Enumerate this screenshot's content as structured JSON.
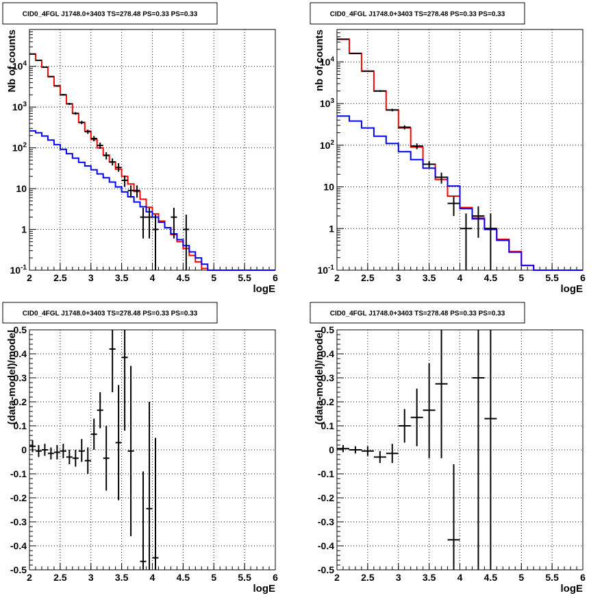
{
  "charts": [
    {
      "title": "CID0_4FGL J1748.0+3403 TS=278.48 PS=0.33 PS=0.33",
      "xlabel": "logE",
      "ylabel": "Nb of counts",
      "chart_data": {
        "type": "line",
        "log_y": true,
        "xlim": [
          2,
          6
        ],
        "ylim": [
          0.1,
          80000
        ],
        "x_ticks": [
          "2",
          "2.5",
          "3",
          "3.5",
          "4",
          "4.5",
          "5",
          "5.5",
          "6"
        ],
        "y_ticks": [
          "10^-1",
          "1",
          "10",
          "10^2",
          "10^3",
          "10^4"
        ],
        "grid": true,
        "bin_width": 0.1,
        "series": [
          {
            "color": "#ff0000",
            "style": "step",
            "bin_edges": [
              2.0,
              2.1,
              2.2,
              2.3,
              2.4,
              2.5,
              2.6,
              2.7,
              2.8,
              2.9,
              3.0,
              3.1,
              3.2,
              3.3,
              3.4,
              3.5,
              3.6,
              3.7,
              3.8,
              3.9,
              4.0,
              4.1,
              4.2,
              4.3,
              4.4,
              4.5,
              4.6,
              4.7,
              4.8,
              4.9,
              5.0,
              5.1,
              5.2,
              5.3,
              5.4,
              5.5,
              5.6,
              5.7,
              5.8,
              5.9,
              6.0
            ],
            "values": [
              20000,
              14000,
              9500,
              5600,
              3300,
              2000,
              1200,
              700,
              420,
              255,
              160,
              100,
              66,
              45,
              30,
              20,
              13,
              8.5,
              5.5,
              3.5,
              2.4,
              1.6,
              1.1,
              0.75,
              0.5,
              0.34,
              0.23,
              0.16,
              0.11,
              0.1,
              0.1,
              0.1,
              0.1,
              0.1,
              0.1,
              0.1,
              0.1,
              0.1,
              0.1,
              0.1
            ]
          },
          {
            "color": "#0000ff",
            "style": "step",
            "bin_edges": [
              2.0,
              2.1,
              2.2,
              2.3,
              2.4,
              2.5,
              2.6,
              2.7,
              2.8,
              2.9,
              3.0,
              3.1,
              3.2,
              3.3,
              3.4,
              3.5,
              3.6,
              3.7,
              3.8,
              3.9,
              4.0,
              4.1,
              4.2,
              4.3,
              4.4,
              4.5,
              4.6,
              4.7,
              4.8,
              4.9,
              5.0,
              5.1,
              5.2,
              5.3,
              5.4,
              5.5,
              5.6,
              5.7,
              5.8,
              5.9,
              6.0
            ],
            "values": [
              260,
              235,
              195,
              155,
              120,
              92,
              72,
              56,
              44,
              36,
              29,
              23,
              18.5,
              14.5,
              11,
              8.3,
              6.3,
              4.7,
              3.6,
              2.7,
              2.0,
              1.5,
              1.1,
              0.78,
              0.56,
              0.4,
              0.28,
              0.2,
              0.14,
              0.1,
              0.1,
              0.1,
              0.1,
              0.1,
              0.1,
              0.1,
              0.1,
              0.1,
              0.1,
              0.1
            ]
          },
          {
            "color": "#000000",
            "style": "errorbar",
            "points": [
              {
                "x": 2.05,
                "y": 20000,
                "lo": 19800,
                "hi": 20200
              },
              {
                "x": 2.15,
                "y": 14000,
                "lo": 13800,
                "hi": 14200
              },
              {
                "x": 2.25,
                "y": 9500,
                "lo": 9300,
                "hi": 9700
              },
              {
                "x": 2.35,
                "y": 5600,
                "lo": 5450,
                "hi": 5750
              },
              {
                "x": 2.45,
                "y": 3300,
                "lo": 3190,
                "hi": 3410
              },
              {
                "x": 2.55,
                "y": 2000,
                "lo": 1910,
                "hi": 2090
              },
              {
                "x": 2.65,
                "y": 1200,
                "lo": 1130,
                "hi": 1270
              },
              {
                "x": 2.75,
                "y": 700,
                "lo": 650,
                "hi": 750
              },
              {
                "x": 2.85,
                "y": 420,
                "lo": 380,
                "hi": 460
              },
              {
                "x": 2.95,
                "y": 250,
                "lo": 220,
                "hi": 280
              },
              {
                "x": 3.05,
                "y": 170,
                "lo": 145,
                "hi": 195
              },
              {
                "x": 3.15,
                "y": 115,
                "lo": 95,
                "hi": 135
              },
              {
                "x": 3.25,
                "y": 65,
                "lo": 52,
                "hi": 78
              },
              {
                "x": 3.35,
                "y": 45,
                "lo": 37,
                "hi": 55
              },
              {
                "x": 3.45,
                "y": 33,
                "lo": 26,
                "hi": 42
              },
              {
                "x": 3.55,
                "y": 16,
                "lo": 11,
                "hi": 21
              },
              {
                "x": 3.65,
                "y": 9,
                "lo": 6,
                "hi": 12
              },
              {
                "x": 3.75,
                "y": 9,
                "lo": 6,
                "hi": 12
              },
              {
                "x": 3.85,
                "y": 2,
                "lo": 0.6,
                "hi": 3.4
              },
              {
                "x": 3.95,
                "y": 2,
                "lo": 0.6,
                "hi": 3.4
              },
              {
                "x": 4.05,
                "y": 1,
                "lo": 0.1,
                "hi": 2.3
              },
              {
                "x": 4.35,
                "y": 2,
                "lo": 0.6,
                "hi": 3.4
              },
              {
                "x": 4.55,
                "y": 1,
                "lo": 0.1,
                "hi": 2.3
              }
            ]
          }
        ]
      }
    },
    {
      "title": "CID0_4FGL J1748.0+3403 TS=278.48 PS=0.33 PS=0.33",
      "xlabel": "logE",
      "ylabel": "nb of counts",
      "chart_data": {
        "type": "line",
        "log_y": true,
        "xlim": [
          2,
          6
        ],
        "ylim": [
          0.1,
          60000
        ],
        "x_ticks": [
          "2",
          "2.5",
          "3",
          "3.5",
          "4",
          "4.5",
          "5",
          "5.5",
          "6"
        ],
        "y_ticks": [
          "10^-1",
          "1",
          "10",
          "10^2",
          "10^3",
          "10^4"
        ],
        "grid": true,
        "bin_width": 0.2,
        "series": [
          {
            "color": "#ff0000",
            "style": "step",
            "bin_edges": [
              2.0,
              2.2,
              2.4,
              2.6,
              2.8,
              3.0,
              3.2,
              3.4,
              3.6,
              3.8,
              4.0,
              4.2,
              4.4,
              4.6,
              4.8,
              5.0,
              5.2,
              5.4,
              5.6,
              5.8,
              6.0
            ],
            "values": [
              35000,
              16000,
              6000,
              2000,
              700,
              260,
              90,
              35,
              15,
              6,
              3.2,
              1.8,
              1.0,
              0.55,
              0.28,
              0.13,
              0.1,
              0.1,
              0.1,
              0.1
            ]
          },
          {
            "color": "#0000ff",
            "style": "step",
            "bin_edges": [
              2.0,
              2.2,
              2.4,
              2.6,
              2.8,
              3.0,
              3.2,
              3.4,
              3.6,
              3.8,
              4.0,
              4.2,
              4.4,
              4.6,
              4.8,
              5.0,
              5.2,
              5.4,
              5.6,
              5.8,
              6.0
            ],
            "values": [
              500,
              380,
              260,
              165,
              110,
              70,
              45,
              28,
              17,
              10.5,
              3.0,
              1.7,
              0.95,
              0.52,
              0.27,
              0.13,
              0.1,
              0.1,
              0.1,
              0.1
            ]
          },
          {
            "color": "#000000",
            "style": "errorbar",
            "points": [
              {
                "x": 2.1,
                "y": 35000,
                "lo": 34600,
                "hi": 35400
              },
              {
                "x": 2.3,
                "y": 16000,
                "lo": 15700,
                "hi": 16300
              },
              {
                "x": 2.5,
                "y": 6000,
                "lo": 5800,
                "hi": 6200
              },
              {
                "x": 2.7,
                "y": 2000,
                "lo": 1900,
                "hi": 2100
              },
              {
                "x": 2.9,
                "y": 700,
                "lo": 650,
                "hi": 750
              },
              {
                "x": 3.1,
                "y": 270,
                "lo": 240,
                "hi": 300
              },
              {
                "x": 3.3,
                "y": 95,
                "lo": 80,
                "hi": 110
              },
              {
                "x": 3.5,
                "y": 35,
                "lo": 28,
                "hi": 42
              },
              {
                "x": 3.7,
                "y": 17,
                "lo": 12,
                "hi": 22
              },
              {
                "x": 3.9,
                "y": 4,
                "lo": 2,
                "hi": 6
              },
              {
                "x": 4.1,
                "y": 1,
                "lo": 0.1,
                "hi": 2.3
              },
              {
                "x": 4.3,
                "y": 2,
                "lo": 0.6,
                "hi": 3.4
              },
              {
                "x": 4.5,
                "y": 1,
                "lo": 0.1,
                "hi": 2.3
              }
            ]
          }
        ]
      }
    },
    {
      "title": "CID0_4FGL J1748.0+3403 TS=278.48 PS=0.33 PS=0.33",
      "xlabel": "logE",
      "ylabel": "(data-model)/model",
      "chart_data": {
        "type": "scatter",
        "log_y": false,
        "xlim": [
          2,
          6
        ],
        "ylim": [
          -0.5,
          0.5
        ],
        "x_ticks": [
          "2",
          "2.5",
          "3",
          "3.5",
          "4",
          "4.5",
          "5",
          "5.5",
          "6"
        ],
        "y_ticks": [
          "-0.5",
          "-0.4",
          "-0.3",
          "-0.2",
          "-0.1",
          "0",
          "0.1",
          "0.2",
          "0.3",
          "0.4",
          "0.5"
        ],
        "grid": true,
        "bin_width": 0.1,
        "series": [
          {
            "color": "#000000",
            "style": "errorbar",
            "points": [
              {
                "x": 2.05,
                "y": 0.015,
                "lo": -0.01,
                "hi": 0.04
              },
              {
                "x": 2.15,
                "y": -0.005,
                "lo": -0.03,
                "hi": 0.02
              },
              {
                "x": 2.25,
                "y": 0.0,
                "lo": -0.025,
                "hi": 0.025
              },
              {
                "x": 2.35,
                "y": -0.015,
                "lo": -0.04,
                "hi": 0.01
              },
              {
                "x": 2.45,
                "y": -0.01,
                "lo": -0.04,
                "hi": 0.02
              },
              {
                "x": 2.55,
                "y": -0.005,
                "lo": -0.035,
                "hi": 0.025
              },
              {
                "x": 2.65,
                "y": -0.03,
                "lo": -0.06,
                "hi": 0.0
              },
              {
                "x": 2.75,
                "y": -0.035,
                "lo": -0.07,
                "hi": 0.0
              },
              {
                "x": 2.85,
                "y": -0.005,
                "lo": -0.05,
                "hi": 0.045
              },
              {
                "x": 2.95,
                "y": -0.045,
                "lo": -0.1,
                "hi": 0.01
              },
              {
                "x": 3.05,
                "y": 0.065,
                "lo": 0.0,
                "hi": 0.13
              },
              {
                "x": 3.15,
                "y": 0.165,
                "lo": 0.09,
                "hi": 0.24
              },
              {
                "x": 3.25,
                "y": -0.035,
                "lo": -0.17,
                "hi": 0.1
              },
              {
                "x": 3.35,
                "y": 0.42,
                "lo": 0.24,
                "hi": 0.5
              },
              {
                "x": 3.45,
                "y": 0.03,
                "lo": -0.21,
                "hi": 0.27
              },
              {
                "x": 3.55,
                "y": 0.385,
                "lo": 0.08,
                "hi": 0.5
              },
              {
                "x": 3.65,
                "y": -0.005,
                "lo": -0.36,
                "hi": 0.35
              },
              {
                "x": 3.85,
                "y": -0.465,
                "lo": -0.5,
                "hi": -0.09
              },
              {
                "x": 3.95,
                "y": -0.245,
                "lo": -0.5,
                "hi": 0.2
              },
              {
                "x": 4.05,
                "y": -0.45,
                "lo": -0.5,
                "hi": 0.05
              }
            ]
          }
        ]
      }
    },
    {
      "title": "CID0_4FGL J1748.0+3403 TS=278.48 PS=0.33 PS=0.33",
      "xlabel": "logE",
      "ylabel": "(data-model)/model",
      "chart_data": {
        "type": "scatter",
        "log_y": false,
        "xlim": [
          2,
          6
        ],
        "ylim": [
          -0.5,
          0.5
        ],
        "x_ticks": [
          "2",
          "2.5",
          "3",
          "3.5",
          "4",
          "4.5",
          "5",
          "5.5",
          "6"
        ],
        "y_ticks": [
          "-0.5",
          "-0.4",
          "-0.3",
          "-0.2",
          "-0.1",
          "0",
          "0.1",
          "0.2",
          "0.3",
          "0.4",
          "0.5"
        ],
        "grid": true,
        "bin_width": 0.2,
        "series": [
          {
            "color": "#000000",
            "style": "errorbar",
            "points": [
              {
                "x": 2.1,
                "y": 0.005,
                "lo": -0.01,
                "hi": 0.02
              },
              {
                "x": 2.3,
                "y": 0.0,
                "lo": -0.015,
                "hi": 0.015
              },
              {
                "x": 2.5,
                "y": -0.005,
                "lo": -0.025,
                "hi": 0.015
              },
              {
                "x": 2.7,
                "y": -0.03,
                "lo": -0.055,
                "hi": -0.005
              },
              {
                "x": 2.9,
                "y": -0.015,
                "lo": -0.055,
                "hi": 0.025
              },
              {
                "x": 3.1,
                "y": 0.1,
                "lo": 0.03,
                "hi": 0.17
              },
              {
                "x": 3.3,
                "y": 0.135,
                "lo": 0.015,
                "hi": 0.255
              },
              {
                "x": 3.5,
                "y": 0.165,
                "lo": -0.035,
                "hi": 0.36
              },
              {
                "x": 3.7,
                "y": 0.275,
                "lo": -0.035,
                "hi": 0.5
              },
              {
                "x": 3.9,
                "y": -0.375,
                "lo": -0.5,
                "hi": -0.06
              },
              {
                "x": 4.3,
                "y": 0.3,
                "lo": -0.5,
                "hi": 0.5
              },
              {
                "x": 4.5,
                "y": 0.13,
                "lo": -0.5,
                "hi": 0.5
              }
            ]
          }
        ]
      }
    }
  ]
}
